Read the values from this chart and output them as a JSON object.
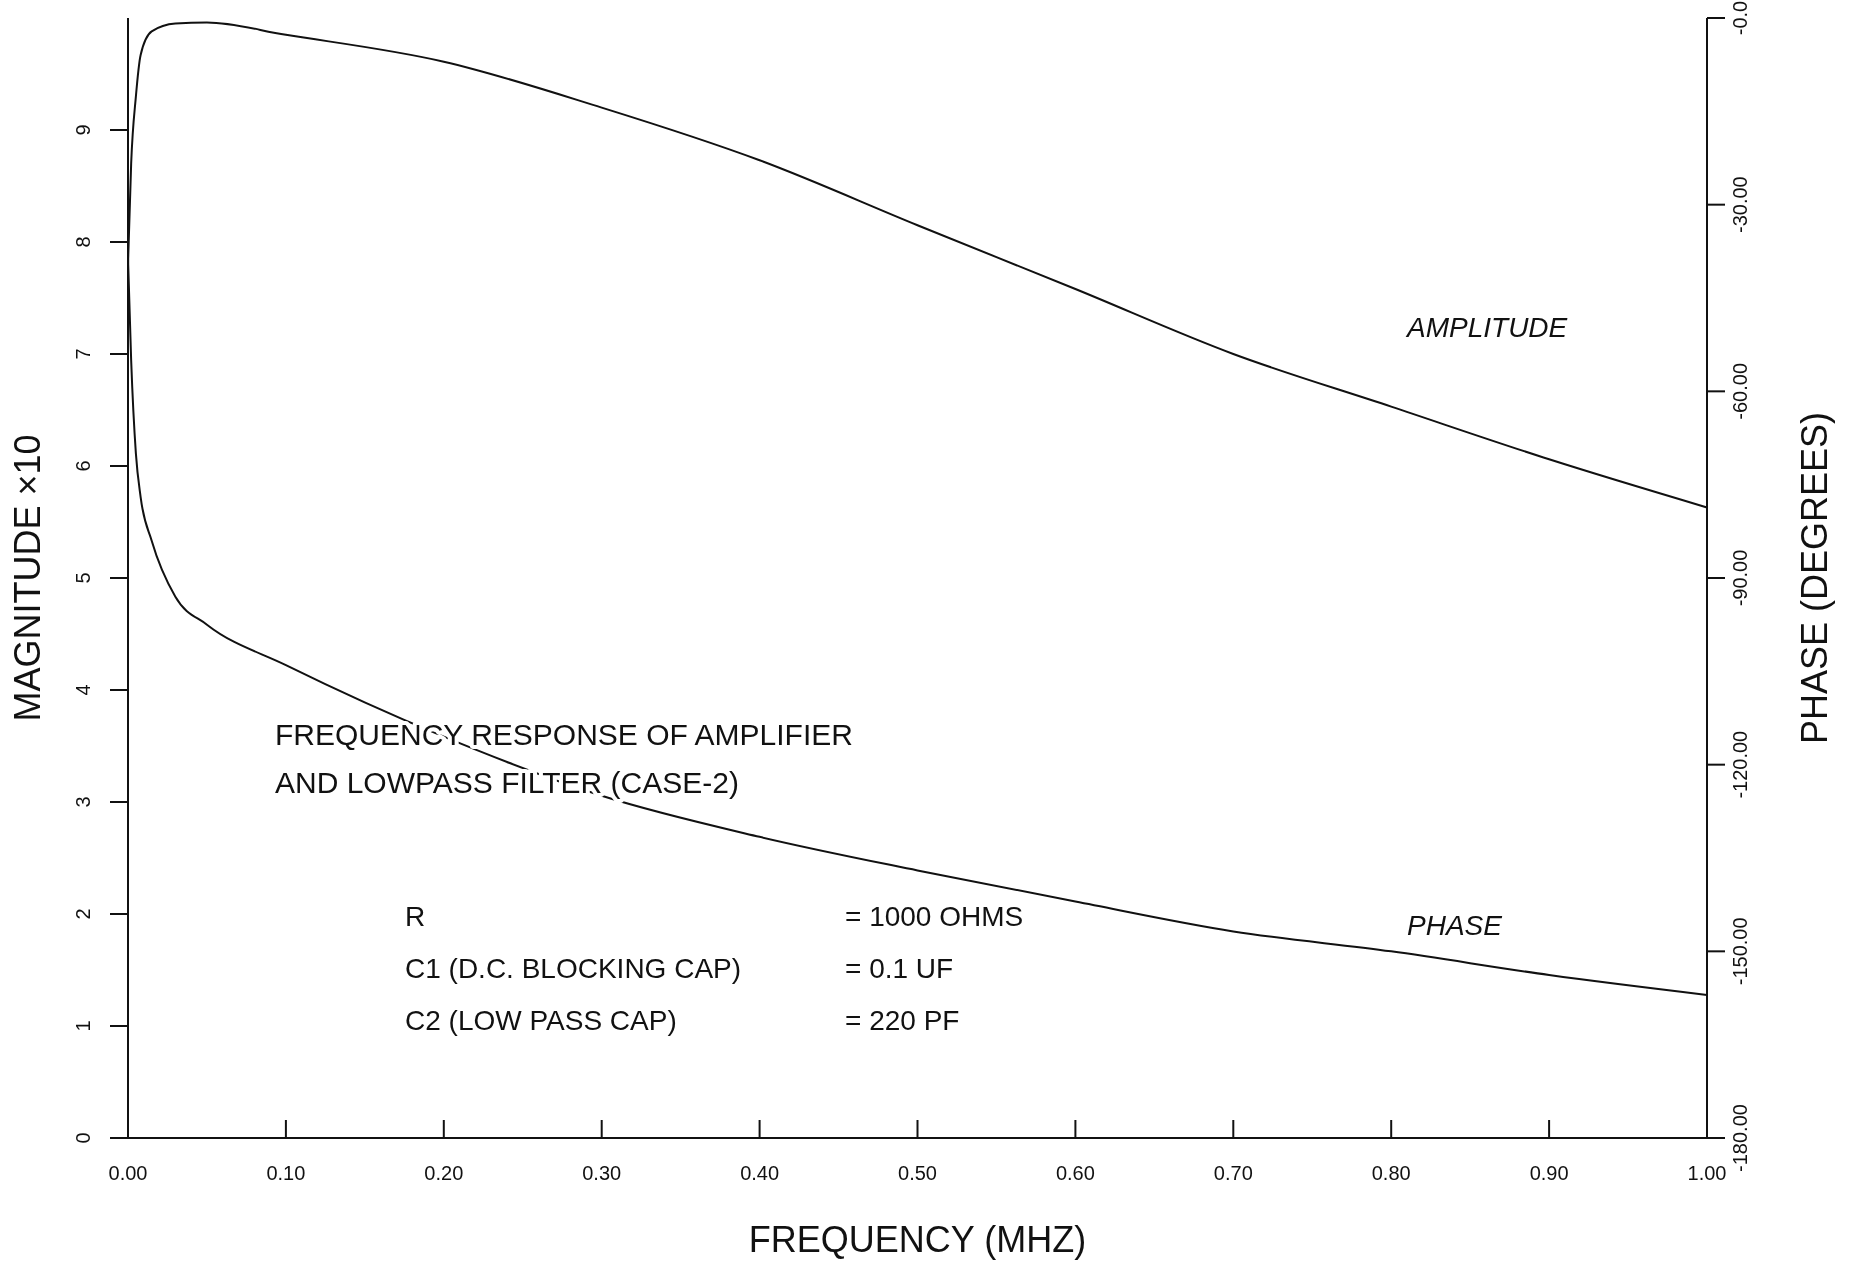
{
  "chart_data": {
    "type": "line",
    "xlabel": "FREQUENCY (MHZ)",
    "ylabel": "MAGNITUDE ×10",
    "y2label": "PHASE (DEGREES)",
    "x": [
      0,
      0.002,
      0.005,
      0.008,
      0.015,
      0.03,
      0.05,
      0.1,
      0.2,
      0.3,
      0.4,
      0.5,
      0.6,
      0.7,
      0.8,
      0.9,
      1.0
    ],
    "series": [
      {
        "name": "AMPLITUDE",
        "color": "#111111",
        "values": [
          7.8,
          8.7,
          9.3,
          9.67,
          9.88,
          9.95,
          9.96,
          9.85,
          9.61,
          9.2,
          8.73,
          8.15,
          7.58,
          7.0,
          6.53,
          6.06,
          5.63
        ]
      },
      {
        "name": "PHASE",
        "color": "#111111",
        "axis": "y2",
        "values": [
          -38.6,
          -55,
          -70,
          -77,
          -84,
          -93,
          -97.5,
          -104,
          -115.5,
          -125,
          -131.6,
          -137,
          -142,
          -146.8,
          -150,
          -153.8,
          -157
        ]
      }
    ],
    "xlim": [
      0,
      1.0
    ],
    "xticks": [
      {
        "value": 0,
        "label": "0.00"
      },
      {
        "value": 0.1,
        "label": "0.10"
      },
      {
        "value": 0.2,
        "label": "0.20"
      },
      {
        "value": 0.3,
        "label": "0.30"
      },
      {
        "value": 0.4,
        "label": "0.40"
      },
      {
        "value": 0.5,
        "label": "0.50"
      },
      {
        "value": 0.6,
        "label": "0.60"
      },
      {
        "value": 0.7,
        "label": "0.70"
      },
      {
        "value": 0.8,
        "label": "0.80"
      },
      {
        "value": 0.9,
        "label": "0.90"
      },
      {
        "value": 1.0,
        "label": "1.00"
      }
    ],
    "ylim": [
      0,
      10
    ],
    "yticks": [
      0,
      1,
      2,
      3,
      4,
      5,
      6,
      7,
      8,
      9
    ],
    "y2lim": [
      -180,
      0
    ],
    "y2ticks": [
      {
        "value": 0,
        "label": "-0.0"
      },
      {
        "value": -30,
        "label": "-30.00"
      },
      {
        "value": -60,
        "label": "-60.00"
      },
      {
        "value": -90,
        "label": "-90.00"
      },
      {
        "value": -120,
        "label": "-120.00"
      },
      {
        "value": -150,
        "label": "-150.00"
      },
      {
        "value": -180,
        "label": "-180.00"
      }
    ],
    "annotations": [
      "FREQUENCY RESPONSE OF AMPLIFIER",
      "AND LOWPASS FILTER (CASE-2)",
      "R = 1000 OHMS",
      "C1 (D.C. BLOCKING CAP) = 0.1 UF",
      "C2 (LOW PASS CAP) = 220 PF"
    ],
    "grid": false,
    "marker": "none",
    "line_style": "solid"
  }
}
